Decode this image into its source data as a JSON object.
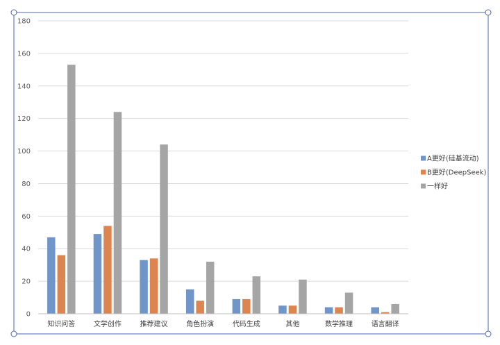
{
  "chart_data": {
    "type": "bar",
    "title": "",
    "xlabel": "",
    "ylabel": "",
    "ylim": [
      0,
      180
    ],
    "yticks": [
      0,
      20,
      40,
      60,
      80,
      100,
      120,
      140,
      160,
      180
    ],
    "grid": true,
    "legend_position": "right",
    "categories": [
      "知识问答",
      "文学创作",
      "推荐建议",
      "角色扮演",
      "代码生成",
      "其他",
      "数学推理",
      "语言翻译"
    ],
    "series": [
      {
        "name": "A更好(硅基流动)",
        "color": "#6f95c9",
        "values": [
          47,
          49,
          33,
          15,
          9,
          5,
          4,
          4
        ]
      },
      {
        "name": "B更好(DeepSeek)",
        "color": "#dc8550",
        "values": [
          36,
          54,
          34,
          8,
          9,
          5,
          4,
          1
        ]
      },
      {
        "name": "一样好",
        "color": "#a5a5a5",
        "values": [
          153,
          124,
          104,
          32,
          23,
          21,
          13,
          6
        ]
      }
    ]
  },
  "colors": {
    "frame_border": "#4e63b8",
    "gridline": "#d9d9d9",
    "axis_line": "#bfbfbf"
  }
}
